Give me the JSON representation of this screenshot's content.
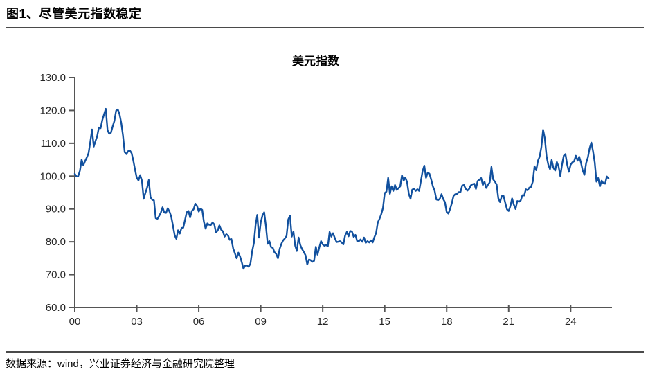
{
  "page": {
    "title": "图1、尽管美元指数稳定",
    "source_note": "数据来源：wind，兴业证券经济与金融研究院整理"
  },
  "chart_data": {
    "type": "line",
    "title": "美元指数",
    "xlabel": "",
    "ylabel": "",
    "grid": false,
    "legend": "none",
    "xlim": [
      2000,
      2026
    ],
    "ylim": [
      60,
      130
    ],
    "y_ticks": [
      130,
      120,
      110,
      100,
      90,
      80,
      70,
      60
    ],
    "y_tick_labels": [
      "130.0",
      "120.0",
      "110.0",
      "100.0",
      "90.0",
      "80.0",
      "70.0",
      "60.0"
    ],
    "x_ticks_years": [
      2000,
      2003,
      2006,
      2009,
      2012,
      2015,
      2018,
      2021,
      2024
    ],
    "x_tick_labels": [
      "00",
      "03",
      "06",
      "09",
      "12",
      "15",
      "18",
      "21",
      "24"
    ],
    "axis_color": "#555555",
    "tick_label_color": "#262626",
    "series": [
      {
        "name": "美元指数",
        "color": "#11509E",
        "start_year": 2000,
        "interval_months": 1,
        "values": [
          100.7,
          99.9,
          100.0,
          101.7,
          105.0,
          103.3,
          104.6,
          105.7,
          107.0,
          110.4,
          114.2,
          109.0,
          110.6,
          112.1,
          114.8,
          114.6,
          117.1,
          118.8,
          120.5,
          114.0,
          112.9,
          113.2,
          115.1,
          116.8,
          119.9,
          120.3,
          118.8,
          116.1,
          112.4,
          107.3,
          106.7,
          107.6,
          107.8,
          107.0,
          104.7,
          101.9,
          99.5,
          98.7,
          100.3,
          98.6,
          93.1,
          94.9,
          96.5,
          98.8,
          93.5,
          92.8,
          92.6,
          87.2,
          87.0,
          87.9,
          88.9,
          90.5,
          88.9,
          88.8,
          90.2,
          89.2,
          87.7,
          84.9,
          82.0,
          80.9,
          83.5,
          82.5,
          84.2,
          84.3,
          86.6,
          89.0,
          89.4,
          87.4,
          89.4,
          89.9,
          91.6,
          90.9,
          89.2,
          90.1,
          89.7,
          86.1,
          84.0,
          85.6,
          85.2,
          85.1,
          85.9,
          85.3,
          82.9,
          83.4,
          85.0,
          83.7,
          83.2,
          81.6,
          82.3,
          81.9,
          80.6,
          80.8,
          78.0,
          76.5,
          75.0,
          76.7,
          75.5,
          73.7,
          71.8,
          72.8,
          72.8,
          72.4,
          73.3,
          77.1,
          79.6,
          85.2,
          88.2,
          81.3,
          85.9,
          88.0,
          89.0,
          84.8,
          79.4,
          80.2,
          78.4,
          78.2,
          76.8,
          76.3,
          75.0,
          77.9,
          79.4,
          80.4,
          81.0,
          81.8,
          86.8,
          88.0,
          81.6,
          83.1,
          78.8,
          77.2,
          81.3,
          79.0,
          77.8,
          76.9,
          75.9,
          73.1,
          74.6,
          74.4,
          73.9,
          74.2,
          78.5,
          76.1,
          78.3,
          80.2,
          79.2,
          78.8,
          79.0,
          78.7,
          83.0,
          81.6,
          82.6,
          81.2,
          79.9,
          80.0,
          80.2,
          79.8,
          79.2,
          81.9,
          83.0,
          81.7,
          83.3,
          83.1,
          81.5,
          82.1,
          80.2,
          80.2,
          80.7,
          80.0,
          81.3,
          79.7,
          80.2,
          79.8,
          80.4,
          79.8,
          81.4,
          82.7,
          85.9,
          87.0,
          88.4,
          90.3,
          94.8,
          95.3,
          99.5,
          94.6,
          96.9,
          95.5,
          97.3,
          95.8,
          96.3,
          96.9,
          100.2,
          98.6,
          99.6,
          98.2,
          94.6,
          93.1,
          95.9,
          96.1,
          95.5,
          96.0,
          95.5,
          98.4,
          101.5,
          103.2,
          99.5,
          101.1,
          100.7,
          99.0,
          96.9,
          95.6,
          92.9,
          92.7,
          93.1,
          94.5,
          93.0,
          92.1,
          89.1,
          88.6,
          90.0,
          91.8,
          94.0,
          94.5,
          94.6,
          95.1,
          95.1,
          97.1,
          97.3,
          96.2,
          95.6,
          96.1,
          97.2,
          97.5,
          97.7,
          96.1,
          98.5,
          98.9,
          99.4,
          97.3,
          98.3,
          96.4,
          97.4,
          98.1,
          102.8,
          99.0,
          98.3,
          97.4,
          93.3,
          92.1,
          93.9,
          94.0,
          91.9,
          89.9,
          89.4,
          90.9,
          93.2,
          91.3,
          90.0,
          92.4,
          92.2,
          92.6,
          94.2,
          94.1,
          96.0,
          95.7,
          96.5,
          96.7,
          98.3,
          103.0,
          101.8,
          104.7,
          105.9,
          108.8,
          114.1,
          111.5,
          106.0,
          103.5,
          102.1,
          104.9,
          102.5,
          101.7,
          104.3,
          102.9,
          100.0,
          103.6,
          106.2,
          106.7,
          103.5,
          101.3,
          103.5,
          104.2,
          104.5,
          106.2,
          104.7,
          105.9,
          104.1,
          101.7,
          100.4,
          104.0,
          105.7,
          108.5,
          110.2,
          107.6,
          104.2,
          98.3,
          99.4,
          96.9,
          98.6,
          97.8,
          97.7,
          99.9,
          99.3
        ]
      }
    ]
  }
}
